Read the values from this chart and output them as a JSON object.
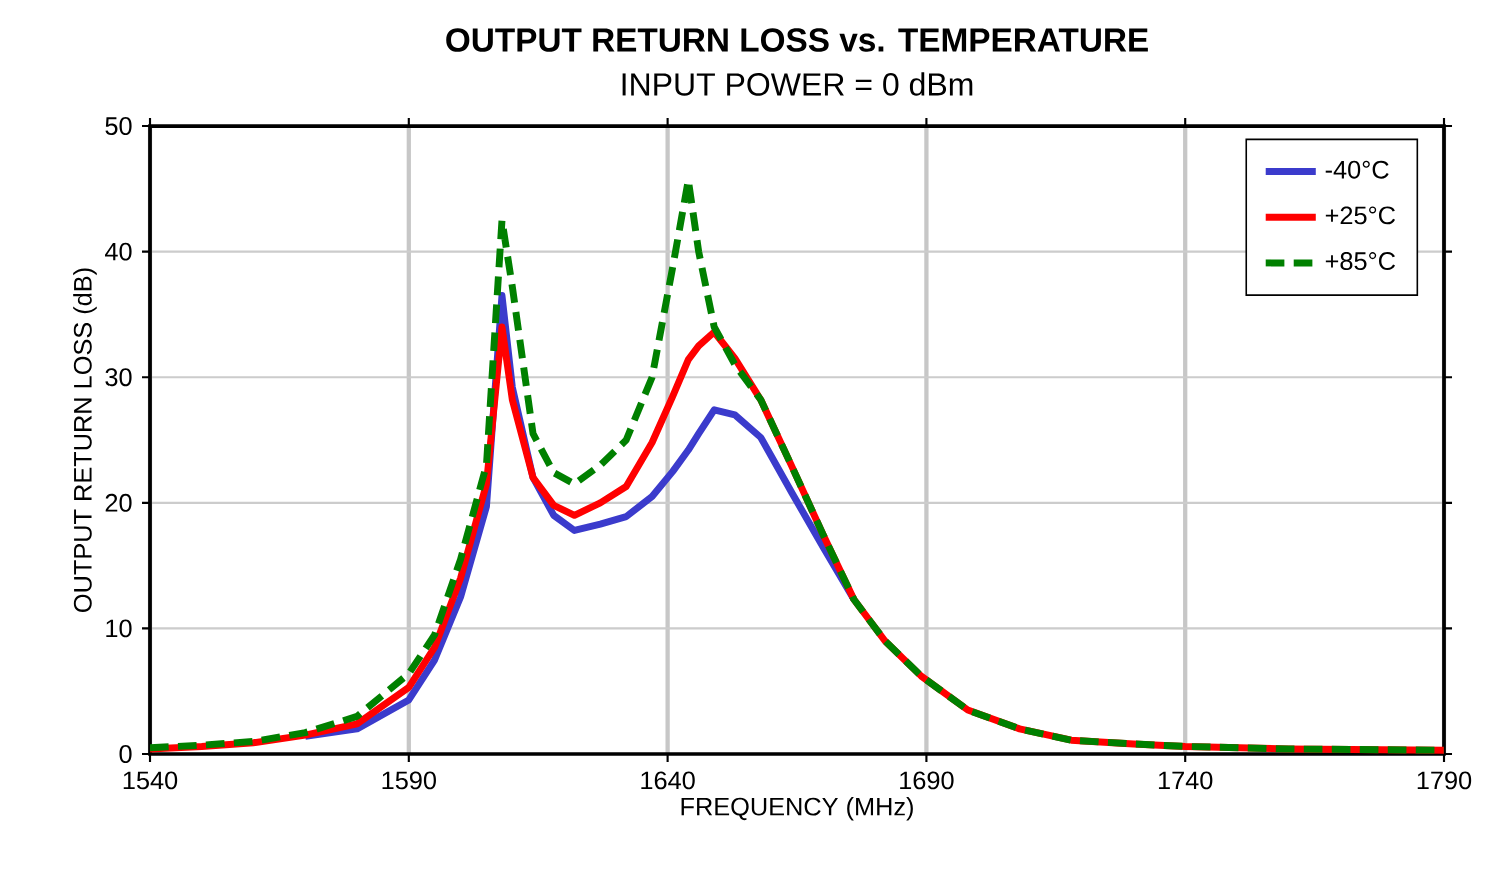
{
  "chart_data": {
    "type": "line",
    "title": "OUTPUT RETURN LOSS vs. TEMPERATURE",
    "subtitle": "INPUT POWER = 0 dBm",
    "xlabel": "FREQUENCY (MHz)",
    "ylabel": "OUTPUT RETURN LOSS (dB)",
    "x": [
      1540,
      1550,
      1560,
      1570,
      1580,
      1590,
      1595,
      1600,
      1605,
      1608,
      1610,
      1614,
      1618,
      1622,
      1627,
      1632,
      1637,
      1641,
      1644,
      1646,
      1649,
      1653,
      1658,
      1664,
      1670,
      1676,
      1682,
      1689,
      1698,
      1708,
      1718,
      1730,
      1740,
      1760,
      1790
    ],
    "series": [
      {
        "name": "-40°C",
        "color": "#3b3bcc",
        "line_style": "solid",
        "values": [
          null,
          null,
          null,
          1.4,
          2.0,
          4.3,
          7.5,
          12.5,
          19.7,
          36.5,
          29.2,
          22.0,
          19.0,
          17.8,
          18.3,
          18.9,
          20.5,
          22.5,
          24.2,
          25.5,
          27.4,
          27.0,
          25.2,
          20.8,
          16.5,
          12.3,
          null,
          null,
          null,
          null,
          null,
          null,
          null,
          null,
          null
        ]
      },
      {
        "name": "+25°C",
        "color": "#ff0000",
        "line_style": "solid",
        "values": [
          0.4,
          0.6,
          0.9,
          1.5,
          2.4,
          5.3,
          8.5,
          14.0,
          21.5,
          34.0,
          28.2,
          22.0,
          19.8,
          19.0,
          20.0,
          21.3,
          24.8,
          28.5,
          31.4,
          32.5,
          33.6,
          31.5,
          28.2,
          22.9,
          17.5,
          12.3,
          9.0,
          6.2,
          3.5,
          2.0,
          1.1,
          0.8,
          0.6,
          0.4,
          0.3
        ]
      },
      {
        "name": "+85°C",
        "color": "#008000",
        "line_style": "dashed",
        "values": [
          0.5,
          0.7,
          1.0,
          1.7,
          3.0,
          6.4,
          9.5,
          15.5,
          23.0,
          42.5,
          37.2,
          25.5,
          22.4,
          21.5,
          23.0,
          25.0,
          30.0,
          38.8,
          45.7,
          40.0,
          34.0,
          31.0,
          28.2,
          22.9,
          17.5,
          12.3,
          9.0,
          6.2,
          3.5,
          2.0,
          1.1,
          0.8,
          0.6,
          0.4,
          0.3
        ]
      }
    ],
    "xlim": [
      1540,
      1790
    ],
    "ylim": [
      0,
      50
    ],
    "xticks": [
      1540,
      1590,
      1640,
      1690,
      1740,
      1790
    ],
    "yticks": [
      0,
      10,
      20,
      30,
      40,
      50
    ],
    "grid": true,
    "legend": "top right",
    "marker": "none"
  }
}
